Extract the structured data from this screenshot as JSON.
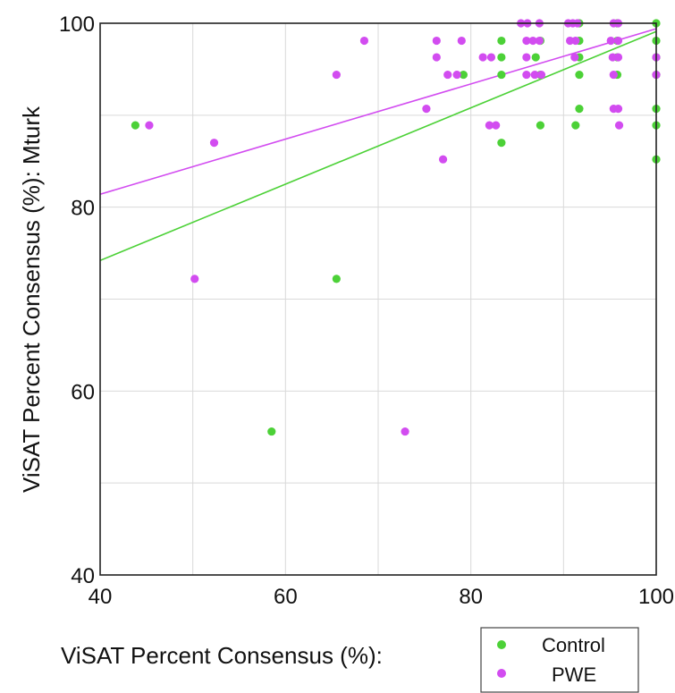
{
  "chart_data": {
    "type": "scatter",
    "xlabel": "ViSAT Percent Consensus (%):",
    "ylabel": "ViSAT Percent Consensus (%): Mturk",
    "xlim": [
      40,
      100
    ],
    "ylim": [
      40,
      100
    ],
    "x_ticks": [
      40,
      60,
      80,
      100
    ],
    "y_ticks": [
      40,
      60,
      80,
      100
    ],
    "grid": true,
    "legend_position": "bottom-right",
    "series": [
      {
        "name": "Control",
        "color": "#4cd137",
        "points": [
          [
            43.8,
            88.9
          ],
          [
            58.5,
            55.6
          ],
          [
            65.5,
            72.2
          ],
          [
            79.2,
            94.4
          ],
          [
            83.3,
            98.1
          ],
          [
            83.3,
            96.3
          ],
          [
            83.3,
            94.4
          ],
          [
            83.3,
            87.0
          ],
          [
            87.0,
            96.3
          ],
          [
            87.5,
            98.1
          ],
          [
            87.5,
            94.4
          ],
          [
            87.5,
            88.9
          ],
          [
            91.7,
            100
          ],
          [
            91.7,
            98.1
          ],
          [
            91.7,
            96.3
          ],
          [
            91.7,
            94.4
          ],
          [
            91.7,
            90.7
          ],
          [
            91.3,
            88.9
          ],
          [
            95.8,
            100
          ],
          [
            95.8,
            98.1
          ],
          [
            95.8,
            96.3
          ],
          [
            95.8,
            94.4
          ],
          [
            100,
            100
          ],
          [
            100,
            98.1
          ],
          [
            100,
            96.3
          ],
          [
            100,
            94.4
          ],
          [
            100,
            90.7
          ],
          [
            100,
            88.9
          ],
          [
            100,
            85.2
          ]
        ],
        "fit": {
          "x": [
            40,
            100
          ],
          "y": [
            74.2,
            99.1
          ]
        }
      },
      {
        "name": "PWE",
        "color": "#d24cf0",
        "points": [
          [
            45.3,
            88.9
          ],
          [
            50.2,
            72.2
          ],
          [
            52.3,
            87.0
          ],
          [
            65.5,
            94.4
          ],
          [
            68.5,
            98.1
          ],
          [
            72.9,
            55.6
          ],
          [
            75.2,
            90.7
          ],
          [
            76.3,
            98.1
          ],
          [
            76.3,
            96.3
          ],
          [
            77.0,
            85.2
          ],
          [
            77.5,
            94.4
          ],
          [
            78.5,
            94.4
          ],
          [
            79.0,
            98.1
          ],
          [
            81.3,
            96.3
          ],
          [
            82.2,
            96.3
          ],
          [
            82.0,
            88.9
          ],
          [
            82.7,
            88.9
          ],
          [
            85.4,
            100
          ],
          [
            86.1,
            100
          ],
          [
            86.0,
            98.1
          ],
          [
            86.0,
            96.3
          ],
          [
            86.0,
            94.4
          ],
          [
            86.7,
            98.1
          ],
          [
            87.4,
            100
          ],
          [
            87.4,
            98.1
          ],
          [
            86.9,
            94.4
          ],
          [
            87.6,
            94.4
          ],
          [
            90.5,
            100
          ],
          [
            91.0,
            100
          ],
          [
            91.5,
            100
          ],
          [
            90.7,
            98.1
          ],
          [
            91.3,
            98.1
          ],
          [
            91.2,
            96.3
          ],
          [
            95.4,
            100
          ],
          [
            95.9,
            100
          ],
          [
            95.1,
            98.1
          ],
          [
            95.9,
            98.1
          ],
          [
            95.3,
            96.3
          ],
          [
            95.9,
            96.3
          ],
          [
            95.4,
            94.4
          ],
          [
            95.4,
            90.7
          ],
          [
            95.9,
            90.7
          ],
          [
            96.0,
            88.9
          ],
          [
            100,
            96.3
          ],
          [
            100,
            94.4
          ]
        ],
        "fit": {
          "x": [
            40,
            100
          ],
          "y": [
            81.4,
            99.4
          ]
        }
      }
    ]
  }
}
